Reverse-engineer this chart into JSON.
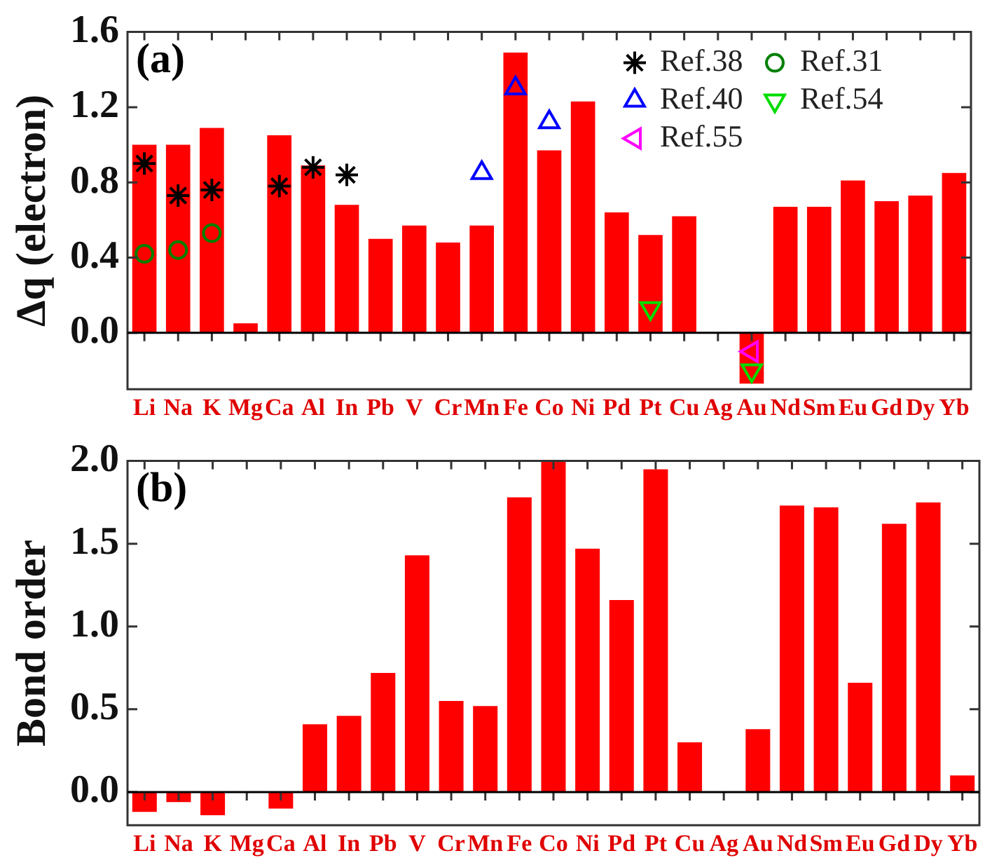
{
  "chart_data": [
    {
      "type": "bar",
      "ylabel": "Δq (electron)",
      "annotations": [
        "(a)"
      ],
      "categories": [
        "Li",
        "Na",
        "K",
        "Mg",
        "Ca",
        "Al",
        "In",
        "Pb",
        "V",
        "Cr",
        "Mn",
        "Fe",
        "Co",
        "Ni",
        "Pd",
        "Pt",
        "Cu",
        "Ag",
        "Au",
        "Nd",
        "Sm",
        "Eu",
        "Gd",
        "Dy",
        "Yb"
      ],
      "ylim": [
        -0.3,
        1.6
      ],
      "yticks": [
        {
          "value": 0,
          "label": "0.0"
        },
        0.4,
        0.8,
        1.2,
        1.6
      ],
      "grid": false,
      "legend": "top right",
      "ref_lines": [
        {
          "axis": "y",
          "value": 0,
          "color": "#000000"
        }
      ],
      "series": [
        {
          "color": "#ff0000",
          "values": [
            1.0,
            1.0,
            1.09,
            0.05,
            1.05,
            0.89,
            0.68,
            0.5,
            0.57,
            0.48,
            0.57,
            1.49,
            0.97,
            1.23,
            0.64,
            0.52,
            0.62,
            0.0,
            -0.27,
            0.67,
            0.67,
            0.81,
            0.7,
            0.73,
            0.85
          ]
        },
        {
          "name": "Ref.38",
          "type": "scatter",
          "marker": "cross",
          "color": "#000000",
          "x": [
            "Li",
            "Na",
            "K",
            "Ca",
            "Al",
            "In"
          ],
          "values": [
            0.9,
            0.73,
            0.76,
            0.78,
            0.88,
            0.84
          ]
        },
        {
          "name": "Ref.40",
          "type": "scatter",
          "marker": "triangle",
          "color": "#0000ff",
          "x": [
            "Mn",
            "Fe",
            "Co"
          ],
          "values": [
            0.85,
            1.3,
            1.12
          ]
        },
        {
          "name": "Ref.55",
          "type": "scatter",
          "marker": "triangle-left",
          "color": "#ff00ff",
          "x": [
            "Au"
          ],
          "values": [
            -0.1
          ]
        },
        {
          "name": "Ref.31",
          "type": "scatter",
          "marker": "circle",
          "color": "#008000",
          "x": [
            "Li",
            "Na",
            "K"
          ],
          "values": [
            0.42,
            0.44,
            0.53
          ]
        },
        {
          "name": "Ref.54",
          "type": "scatter",
          "marker": "triangle-down",
          "color": "#00dd00",
          "x": [
            "Pt",
            "Au"
          ],
          "values": [
            0.13,
            -0.2
          ]
        }
      ]
    },
    {
      "type": "bar",
      "ylabel": "Bond order",
      "annotations": [
        "(b)"
      ],
      "categories": [
        "Li",
        "Na",
        "K",
        "Mg",
        "Ca",
        "Al",
        "In",
        "Pb",
        "V",
        "Cr",
        "Mn",
        "Fe",
        "Co",
        "Ni",
        "Pd",
        "Pt",
        "Cu",
        "Ag",
        "Au",
        "Nd",
        "Sm",
        "Eu",
        "Gd",
        "Dy",
        "Yb"
      ],
      "ylim": [
        -0.2,
        2.0
      ],
      "yticks": [
        {
          "value": 0,
          "label": "0.0"
        },
        0.5,
        {
          "value": 1,
          "label": "1.0"
        },
        1.5,
        {
          "value": 2,
          "label": "2.0"
        }
      ],
      "grid": false,
      "ref_lines": [
        {
          "axis": "y",
          "value": 0,
          "color": "#000000"
        }
      ],
      "series": [
        {
          "color": "#ff0000",
          "values": [
            -0.12,
            -0.06,
            -0.14,
            0.0,
            -0.1,
            0.41,
            0.46,
            0.72,
            1.43,
            0.55,
            0.52,
            1.78,
            2.0,
            1.47,
            1.16,
            1.95,
            0.3,
            0.0,
            0.38,
            1.73,
            1.72,
            0.66,
            1.62,
            1.75,
            0.1
          ]
        }
      ]
    }
  ]
}
